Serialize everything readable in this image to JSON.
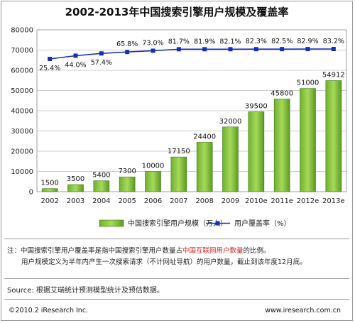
{
  "title": "2002-2013年中国搜索引擎用户规模及覆盖率",
  "colors": {
    "bar": "#8cc63f",
    "bar_edge": "#3c7a14",
    "line": "#1530b0",
    "note_red": "#d7211b"
  },
  "chart_data": {
    "type": "bar",
    "categories": [
      "2002",
      "2003",
      "2004",
      "2005",
      "2006",
      "2007",
      "2008",
      "2009",
      "2010e",
      "2011e",
      "2012e",
      "2013e"
    ],
    "series": [
      {
        "name": "中国搜索引擎用户规模（万人）",
        "type": "bar",
        "values": [
          1500,
          3500,
          5400,
          7300,
          10000,
          17150,
          24400,
          32000,
          39500,
          45800,
          51000,
          54912
        ],
        "labels": [
          "1500",
          "3500",
          "5400",
          "7300",
          "10000",
          "17150",
          "24400",
          "32000",
          "39500",
          "45800",
          "51000",
          "54912"
        ]
      },
      {
        "name": "用户覆盖率（%）",
        "type": "line",
        "values": [
          25.4,
          44.0,
          57.4,
          65.8,
          73.0,
          81.7,
          81.9,
          82.1,
          82.3,
          82.5,
          82.9,
          83.2
        ],
        "labels": [
          "25.4%",
          "44.0%",
          "57.4%",
          "65.8%",
          "73.0%",
          "81.7%",
          "81.9%",
          "82.1%",
          "82.3%",
          "82.5%",
          "82.9%",
          "83.2%"
        ]
      }
    ],
    "ylim": [
      0,
      80000
    ],
    "yticks": [
      "0",
      "10000",
      "20000",
      "30000",
      "40000",
      "50000",
      "60000",
      "70000",
      "80000"
    ],
    "grid": true,
    "legend_position": "bottom"
  },
  "notes": {
    "line1_a": "注：中国搜索引擎用户覆盖率是指中国搜索引擎用户数量占",
    "line1_red": "中国互联网用户数量",
    "line1_b": "的比例。",
    "line2": "用户规模定义为半年内产生一次搜索请求（不计网址导航）的用户数量，截止到该年度12月底。"
  },
  "source": "Source: 根据艾瑞统计预测模型统计及预估数据。",
  "footer": {
    "left": "©2010.2 iResearch Inc.",
    "right": "www.iresearch.com.cn"
  }
}
